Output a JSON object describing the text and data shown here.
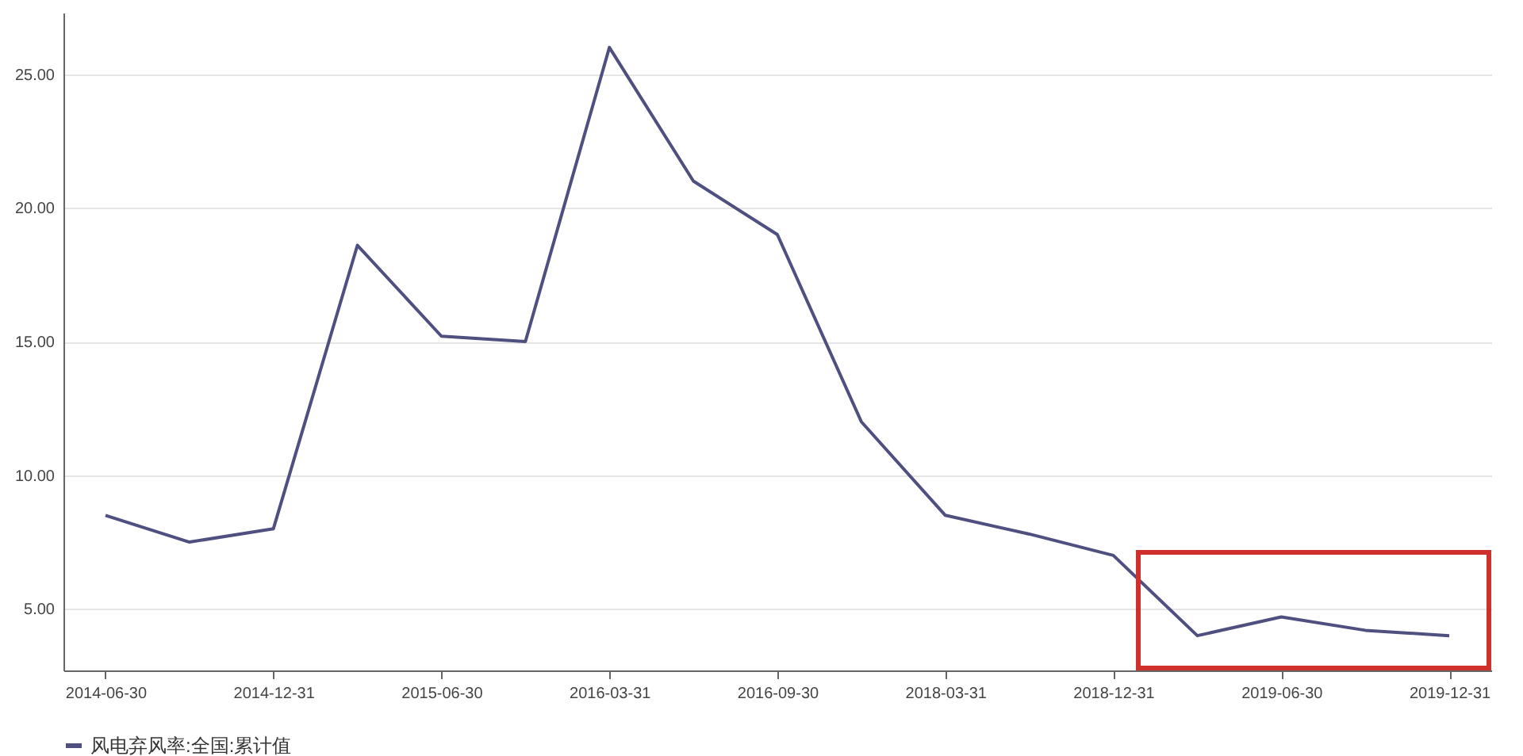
{
  "chart_data": {
    "type": "line",
    "categories": [
      "2014-06-30",
      null,
      "2014-12-31",
      null,
      "2015-06-30",
      null,
      "2016-03-31",
      null,
      "2016-09-30",
      null,
      "2018-03-31",
      null,
      "2018-12-31",
      null,
      "2019-06-30",
      null,
      "2019-12-31"
    ],
    "series": [
      {
        "name": "风电弃风率:全国:累计值",
        "color": "#4f4f80",
        "values": [
          8.5,
          7.5,
          8.0,
          18.6,
          15.2,
          15.0,
          26.0,
          21.0,
          19.0,
          12.0,
          8.5,
          7.8,
          7.0,
          4.0,
          4.7,
          4.2,
          4.0
        ]
      }
    ],
    "ylim": [
      2.7,
      27.3
    ],
    "yticks": [
      {
        "value": 5,
        "label": "5.00"
      },
      {
        "value": 10,
        "label": "10.00"
      },
      {
        "value": 15,
        "label": "15.00"
      },
      {
        "value": 20,
        "label": "20.00"
      },
      {
        "value": 25,
        "label": "25.00"
      }
    ],
    "grid": "y",
    "legend": "bottom",
    "marker": "none",
    "line_style": "solid"
  }
}
